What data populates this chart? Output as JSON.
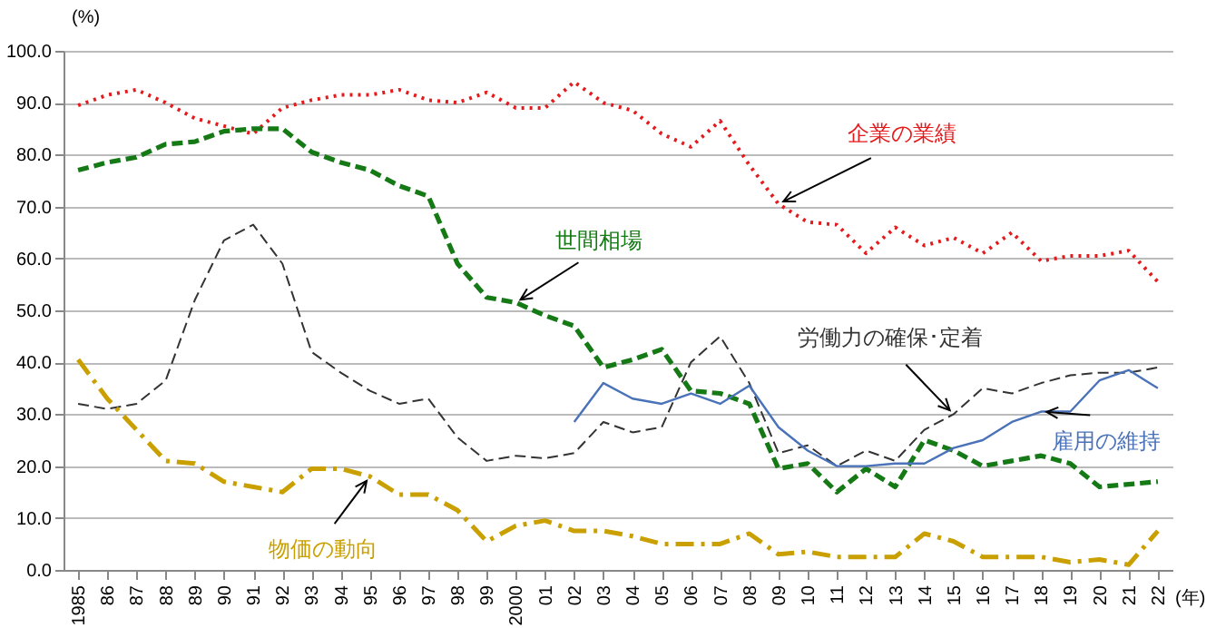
{
  "chart_data": {
    "type": "line",
    "categories": [
      "1985",
      "86",
      "87",
      "88",
      "89",
      "90",
      "91",
      "92",
      "93",
      "94",
      "95",
      "96",
      "97",
      "98",
      "99",
      "2000",
      "01",
      "02",
      "03",
      "04",
      "05",
      "06",
      "07",
      "08",
      "09",
      "10",
      "11",
      "12",
      "13",
      "14",
      "15",
      "16",
      "17",
      "18",
      "19",
      "20",
      "21",
      "22"
    ],
    "series": [
      {
        "name": "企業の業績",
        "color": "#e41a1c",
        "line_style": "dotted",
        "values": [
          89.5,
          91.5,
          92.5,
          90,
          87,
          85.5,
          84,
          89,
          90.5,
          91.5,
          91.5,
          92.5,
          90.5,
          90,
          92,
          89,
          89,
          94,
          90,
          88.5,
          84,
          81.5,
          86.5,
          78,
          70.5,
          67,
          66.5,
          61,
          66,
          62.5,
          64,
          61,
          65,
          59.5,
          60.5,
          60.5,
          61.5,
          55.5
        ]
      },
      {
        "name": "世間相場",
        "color": "#157a15",
        "line_style": "dashed",
        "values": [
          77,
          78.5,
          79.5,
          82,
          82.5,
          84.5,
          85,
          85,
          80.5,
          78.5,
          77,
          74,
          72,
          59,
          52.5,
          51.5,
          49,
          47,
          39,
          40.5,
          42.5,
          34.5,
          34,
          32,
          19.5,
          20.5,
          15,
          19.5,
          16,
          25,
          23,
          20,
          21,
          22,
          20.5,
          16,
          16.5,
          17
        ]
      },
      {
        "name": "労働力の確保･定着",
        "color": "#333333",
        "line_style": "dashed",
        "values": [
          32,
          31,
          32,
          36.5,
          52,
          63.5,
          66.5,
          59,
          42,
          38,
          34.5,
          32,
          33,
          25.5,
          21,
          22,
          21.5,
          22.5,
          28.5,
          26.5,
          27.5,
          40,
          45,
          36,
          22.5,
          24,
          20,
          23,
          21,
          27,
          30,
          35,
          34,
          36,
          37.5,
          38,
          38,
          39
        ]
      },
      {
        "name": "雇用の維持",
        "color": "#4a72b8",
        "line_style": "solid",
        "values": [
          null,
          null,
          null,
          null,
          null,
          null,
          null,
          null,
          null,
          null,
          null,
          null,
          null,
          null,
          null,
          null,
          null,
          28.5,
          36,
          33,
          32,
          34,
          32,
          35.5,
          27.5,
          23,
          20,
          20,
          20.5,
          20.5,
          23.5,
          25,
          28.5,
          30.5,
          30.5,
          36.5,
          38.5,
          35
        ]
      },
      {
        "name": "物価の動向",
        "color": "#c9a000",
        "line_style": "dashdot",
        "values": [
          40.5,
          33,
          27,
          21,
          20.5,
          17,
          16,
          15,
          19.5,
          19.5,
          18,
          14.5,
          14.5,
          11.5,
          5.5,
          8.5,
          9.5,
          7.5,
          7.5,
          6.5,
          5,
          5,
          5,
          7,
          3,
          3.5,
          2.5,
          2.5,
          2.5,
          7,
          5.5,
          2.5,
          2.5,
          2.5,
          1.5,
          2,
          1,
          7.5
        ]
      }
    ],
    "ylabel": "(%)",
    "xlabel": "(年)",
    "ylim": [
      0,
      100
    ],
    "yticks": [
      {
        "value": 0,
        "label": "0.0"
      },
      {
        "value": 10,
        "label": "10.0"
      },
      {
        "value": 20,
        "label": "20.0"
      },
      {
        "value": 30,
        "label": "30.0"
      },
      {
        "value": 40,
        "label": "40.0"
      },
      {
        "value": 50,
        "label": "50.0"
      },
      {
        "value": 60,
        "label": "60.0"
      },
      {
        "value": 70,
        "label": "70.0"
      },
      {
        "value": 80,
        "label": "80.0"
      },
      {
        "value": 90,
        "label": "90.0"
      },
      {
        "value": 100,
        "label": "100.0"
      }
    ],
    "grid": "y"
  }
}
